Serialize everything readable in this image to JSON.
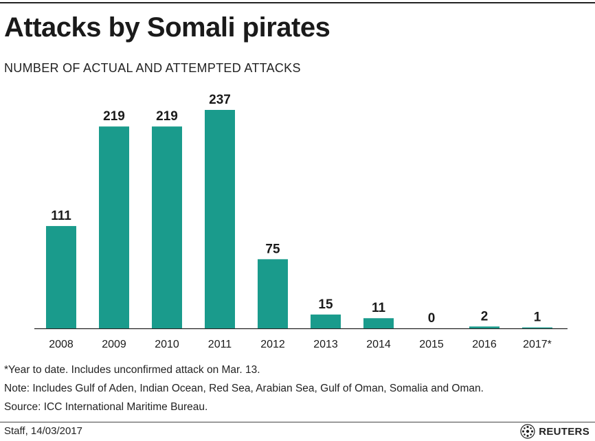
{
  "chart_data": {
    "type": "bar",
    "title": "Attacks by Somali pirates",
    "subtitle": "NUMBER OF ACTUAL AND ATTEMPTED ATTACKS",
    "categories": [
      "2008",
      "2009",
      "2010",
      "2011",
      "2012",
      "2013",
      "2014",
      "2015",
      "2016",
      "2017*"
    ],
    "values": [
      111,
      219,
      219,
      237,
      75,
      15,
      11,
      0,
      2,
      1
    ],
    "xlabel": "",
    "ylabel": "",
    "ylim": [
      0,
      237
    ],
    "grid": false,
    "legend": "none",
    "bar_color": "#1a9b8c"
  },
  "notes": {
    "footnote": "*Year to date. Includes unconfirmed attack on Mar. 13.",
    "note": "Note: Includes Gulf of Aden, Indian Ocean, Red Sea, Arabian Sea, Gulf of Oman, Somalia and Oman.",
    "source": "Source: ICC International Maritime Bureau."
  },
  "credit": "Staff,  14/03/2017",
  "logo": {
    "text": "REUTERS",
    "icon": "reuters-logo-icon"
  }
}
